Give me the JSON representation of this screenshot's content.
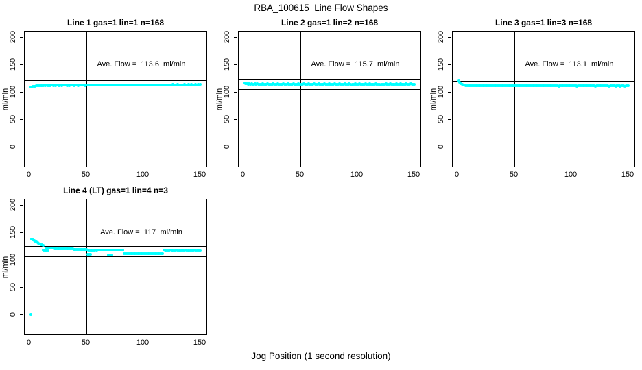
{
  "figure": {
    "title": "RBA_100615  Line Flow Shapes",
    "x_axis_outer_label": "Jog Position (1 second resolution)",
    "point_color": "#00FFFF",
    "line_color": "#000000",
    "x_ticks": [
      0,
      50,
      100,
      150
    ],
    "y_ticks": [
      0,
      50,
      100,
      150,
      200
    ]
  },
  "chart_data": [
    {
      "type": "scatter",
      "title": "Line 1 gas=1 lin=1 n=168",
      "ylabel": "ml/min",
      "ave_flow": 113.6,
      "ave_flow_label": "Ave. Flow =  113.6  ml/min",
      "ref_line_upper": 122.1,
      "ref_line_lower": 105.1,
      "vline_x": 50,
      "xlim": [
        -4.2,
        156.6
      ],
      "ylim": [
        -37,
        211
      ],
      "series": [
        {
          "x_start": 1,
          "x_step": 1,
          "y": [
            109.8,
            110.3,
            110.8,
            111.3,
            111.7,
            112.1,
            112.4,
            112.7,
            112.9,
            113.1,
            113.2,
            112.9,
            113.5,
            113.1,
            113.6,
            113.0,
            113.4,
            112.8,
            113.3,
            113.7,
            113.1,
            113.5,
            112.9,
            113.4,
            113.8,
            113.2,
            113.6,
            113.0,
            113.5,
            113.9,
            113.3,
            113.6,
            113.1,
            113.7,
            113.2,
            113.8,
            113.3,
            113.6,
            113.1,
            113.7,
            113.4,
            113.8,
            113.2,
            113.6,
            113.3,
            113.9,
            113.4,
            113.7,
            113.2,
            113.8,
            113.5,
            113.9,
            113.3,
            113.7,
            113.4,
            114.0,
            113.5,
            113.8,
            113.3,
            113.9,
            113.6,
            114.0,
            113.4,
            113.8,
            113.5,
            114.1,
            113.6,
            113.9,
            113.4,
            114.0,
            113.6,
            114.0,
            113.5,
            113.9,
            113.6,
            114.1,
            113.7,
            114.0,
            113.5,
            114.1,
            113.7,
            114.1,
            113.6,
            114.0,
            113.7,
            114.2,
            113.8,
            114.1,
            113.6,
            114.2,
            113.8,
            114.2,
            113.7,
            114.1,
            113.8,
            114.3,
            113.9,
            114.2,
            113.7,
            114.3,
            113.8,
            114.2,
            113.7,
            114.1,
            113.8,
            114.3,
            113.9,
            114.2,
            113.7,
            114.3,
            113.9,
            114.3,
            113.8,
            114.2,
            113.9,
            114.4,
            114.0,
            114.3,
            113.8,
            114.4,
            114.0,
            114.4,
            113.9,
            114.3,
            114.0,
            114.5,
            114.1,
            114.4,
            113.9,
            114.5,
            114.0,
            114.4,
            113.9,
            114.3,
            114.0,
            114.5,
            114.1,
            114.4,
            113.9,
            114.5,
            114.1,
            114.5,
            114.0,
            114.4,
            114.1,
            114.6,
            114.2,
            114.5,
            114.0,
            114.6
          ]
        }
      ]
    },
    {
      "type": "scatter",
      "title": "Line 2 gas=1 lin=2 n=168",
      "ylabel": "ml/min",
      "ave_flow": 115.7,
      "ave_flow_label": "Ave. Flow =  115.7  ml/min",
      "ref_line_upper": 124.4,
      "ref_line_lower": 107.0,
      "vline_x": 50,
      "xlim": [
        -4.2,
        156.6
      ],
      "ylim": [
        -37,
        211
      ],
      "series": [
        {
          "x_start": 1,
          "x_step": 1,
          "y": [
            117.8,
            116.4,
            115.9,
            115.6,
            115.8,
            115.5,
            115.9,
            115.6,
            115.4,
            115.8,
            115.5,
            115.9,
            115.6,
            115.3,
            115.7,
            115.5,
            115.8,
            115.4,
            115.7,
            115.5,
            115.9,
            115.6,
            115.3,
            115.7,
            115.5,
            115.8,
            115.4,
            115.7,
            115.5,
            115.9,
            115.6,
            115.3,
            115.7,
            115.5,
            115.8,
            115.4,
            115.7,
            115.5,
            115.9,
            115.6,
            115.3,
            115.7,
            115.4,
            115.8,
            113.6,
            115.7,
            115.5,
            115.9,
            115.6,
            115.3,
            115.7,
            115.5,
            115.8,
            115.4,
            115.7,
            115.5,
            115.9,
            115.6,
            115.3,
            115.7,
            115.5,
            115.8,
            115.4,
            115.7,
            115.5,
            115.9,
            115.6,
            115.3,
            115.7,
            115.5,
            115.8,
            115.4,
            115.7,
            115.5,
            115.9,
            115.6,
            115.3,
            115.7,
            115.5,
            115.8,
            115.4,
            115.7,
            115.5,
            115.9,
            115.6,
            115.3,
            115.7,
            115.5,
            115.8,
            115.4,
            115.7,
            115.5,
            115.9,
            115.6,
            113.4,
            115.7,
            115.5,
            115.8,
            115.4,
            115.7,
            115.5,
            115.9,
            115.6,
            115.3,
            115.7,
            115.5,
            115.8,
            115.4,
            115.7,
            115.5,
            115.9,
            115.6,
            115.3,
            115.7,
            115.5,
            115.8,
            115.4,
            115.7,
            115.5,
            113.8,
            115.6,
            115.3,
            115.7,
            115.5,
            115.8,
            115.4,
            115.7,
            115.5,
            115.9,
            115.6,
            115.3,
            115.7,
            115.5,
            115.8,
            115.4,
            115.7,
            115.5,
            115.9,
            115.6,
            115.3,
            115.7,
            115.5,
            115.8,
            115.4,
            115.7,
            115.5,
            115.9,
            115.6,
            115.4,
            115.7
          ]
        }
      ]
    },
    {
      "type": "scatter",
      "title": "Line 3 gas=1 lin=3 n=168",
      "ylabel": "ml/min",
      "ave_flow": 113.1,
      "ave_flow_label": "Ave. Flow =  113.1  ml/min",
      "ref_line_upper": 121.6,
      "ref_line_lower": 104.6,
      "vline_x": 50,
      "xlim": [
        -4.2,
        156.6
      ],
      "ylim": [
        -37,
        211
      ],
      "series": [
        {
          "x_start": 1,
          "x_step": 1,
          "y": [
            121.5,
            118.6,
            116.6,
            115.2,
            114.2,
            113.6,
            113.2,
            113.0,
            112.8,
            112.9,
            112.7,
            113.1,
            112.6,
            113.0,
            112.5,
            112.9,
            112.6,
            113.0,
            112.5,
            112.8,
            112.6,
            113.0,
            112.5,
            112.9,
            112.6,
            112.9,
            112.4,
            112.8,
            112.5,
            112.9,
            112.6,
            112.9,
            112.4,
            112.8,
            112.5,
            112.9,
            112.6,
            112.8,
            112.4,
            112.8,
            112.5,
            112.9,
            112.4,
            112.8,
            112.5,
            112.8,
            112.4,
            112.7,
            112.5,
            112.8,
            112.4,
            112.8,
            112.3,
            112.7,
            112.4,
            112.8,
            112.5,
            112.7,
            112.3,
            112.7,
            112.4,
            112.8,
            112.3,
            112.7,
            112.4,
            112.7,
            112.3,
            112.6,
            112.4,
            112.7,
            112.3,
            112.7,
            112.2,
            112.6,
            112.3,
            112.7,
            112.4,
            112.6,
            112.2,
            112.6,
            112.3,
            112.7,
            112.2,
            112.6,
            112.3,
            112.6,
            112.2,
            112.5,
            111.4,
            112.6,
            112.2,
            112.6,
            112.1,
            112.5,
            112.2,
            112.6,
            112.3,
            112.5,
            112.1,
            112.5,
            112.2,
            112.6,
            112.1,
            112.5,
            111.2,
            112.5,
            112.1,
            112.4,
            112.2,
            112.5,
            112.1,
            112.5,
            112.0,
            112.4,
            112.1,
            112.5,
            112.2,
            112.4,
            112.0,
            112.4,
            111.3,
            112.5,
            112.0,
            112.4,
            112.1,
            112.4,
            112.0,
            112.3,
            112.1,
            112.4,
            112.0,
            112.4,
            111.9,
            112.3,
            112.0,
            112.4,
            112.1,
            112.3,
            111.9,
            112.3,
            112.0,
            112.4,
            111.9,
            112.3,
            112.0,
            112.3,
            111.9,
            112.2,
            112.0,
            112.3
          ]
        }
      ]
    },
    {
      "type": "scatter",
      "title": "Line 4 (LT) gas=1 lin=4 n=3",
      "ylabel": "ml/min",
      "ave_flow": 117,
      "ave_flow_label": "Ave. Flow =  117  ml/min",
      "ref_line_upper": 125.8,
      "ref_line_lower": 108.2,
      "vline_x": 50,
      "xlim": [
        -4.2,
        156.6
      ],
      "ylim": [
        -37,
        211
      ],
      "series": [
        {
          "x_start": 1,
          "x_step": 1,
          "y": [
            2
          ]
        },
        {
          "x_start": 2,
          "x_step": 1,
          "y": [
            139.0,
            137.6,
            136.2,
            134.9,
            133.7,
            132.5,
            131.4,
            130.3,
            129.3,
            128.4,
            127.6
          ]
        },
        {
          "x_start": 12,
          "x_step": 0.8,
          "y": [
            118.4,
            117.9,
            117.5,
            117.3,
            117.2,
            117.4
          ]
        },
        {
          "x_start": 15,
          "x_step": 1,
          "y": [
            122.8,
            122.6,
            122.5,
            122.3,
            122.2,
            122.1,
            122.0,
            121.9,
            121.8,
            121.7,
            121.6,
            121.5,
            121.4,
            121.4,
            121.3,
            121.2,
            121.2,
            121.1,
            121.0,
            121.0,
            120.9,
            120.9,
            120.8,
            120.8,
            120.7,
            120.7,
            120.6,
            120.6,
            120.5,
            120.5,
            120.4,
            120.4,
            120.3,
            120.3,
            120.2,
            120.2
          ]
        },
        {
          "x_start": 51,
          "x_step": 0.7,
          "y": [
            111.4,
            110.9,
            110.6,
            110.8,
            111.2
          ]
        },
        {
          "x_start": 51,
          "x_step": 1,
          "y": [
            118.4,
            118.2,
            118.1,
            118.0,
            118.1,
            118.2,
            118.1,
            118.3,
            118.2,
            118.4,
            118.3,
            118.4,
            118.3,
            118.5,
            118.4,
            118.3,
            118.5,
            118.4,
            118.6,
            118.5,
            118.4,
            118.6,
            118.5,
            118.4,
            118.6,
            118.5,
            118.7,
            118.6,
            118.5,
            118.7,
            118.6,
            118.5
          ]
        },
        {
          "x_start": 69,
          "x_step": 0.8,
          "y": [
            110.5,
            110.0,
            109.7,
            109.9,
            110.3
          ]
        },
        {
          "x_start": 83,
          "x_step": 1,
          "y": [
            113.1,
            112.9,
            113.0,
            112.8,
            112.9,
            112.7,
            112.9,
            112.8,
            112.7,
            112.9,
            112.8,
            112.6,
            112.8,
            112.7,
            112.9,
            112.8,
            112.6,
            112.8,
            112.7,
            112.9,
            112.7,
            112.6,
            112.8,
            112.7,
            112.8,
            112.6,
            112.8,
            112.7,
            112.9,
            112.8,
            112.6,
            112.8,
            112.7,
            112.8,
            112.6
          ]
        },
        {
          "x_start": 118,
          "x_step": 1,
          "y": [
            118.3,
            118.1,
            118.2,
            118.0,
            118.2,
            118.1,
            118.3,
            118.1,
            118.0,
            118.2,
            118.1,
            118.3,
            118.2,
            118.0,
            118.2,
            118.1,
            118.3,
            118.2,
            118.1,
            118.3,
            118.2,
            118.0,
            118.2,
            118.1,
            118.3,
            118.2,
            118.1,
            118.3,
            118.2,
            118.1,
            118.3,
            118.2,
            118.0
          ]
        }
      ]
    }
  ]
}
